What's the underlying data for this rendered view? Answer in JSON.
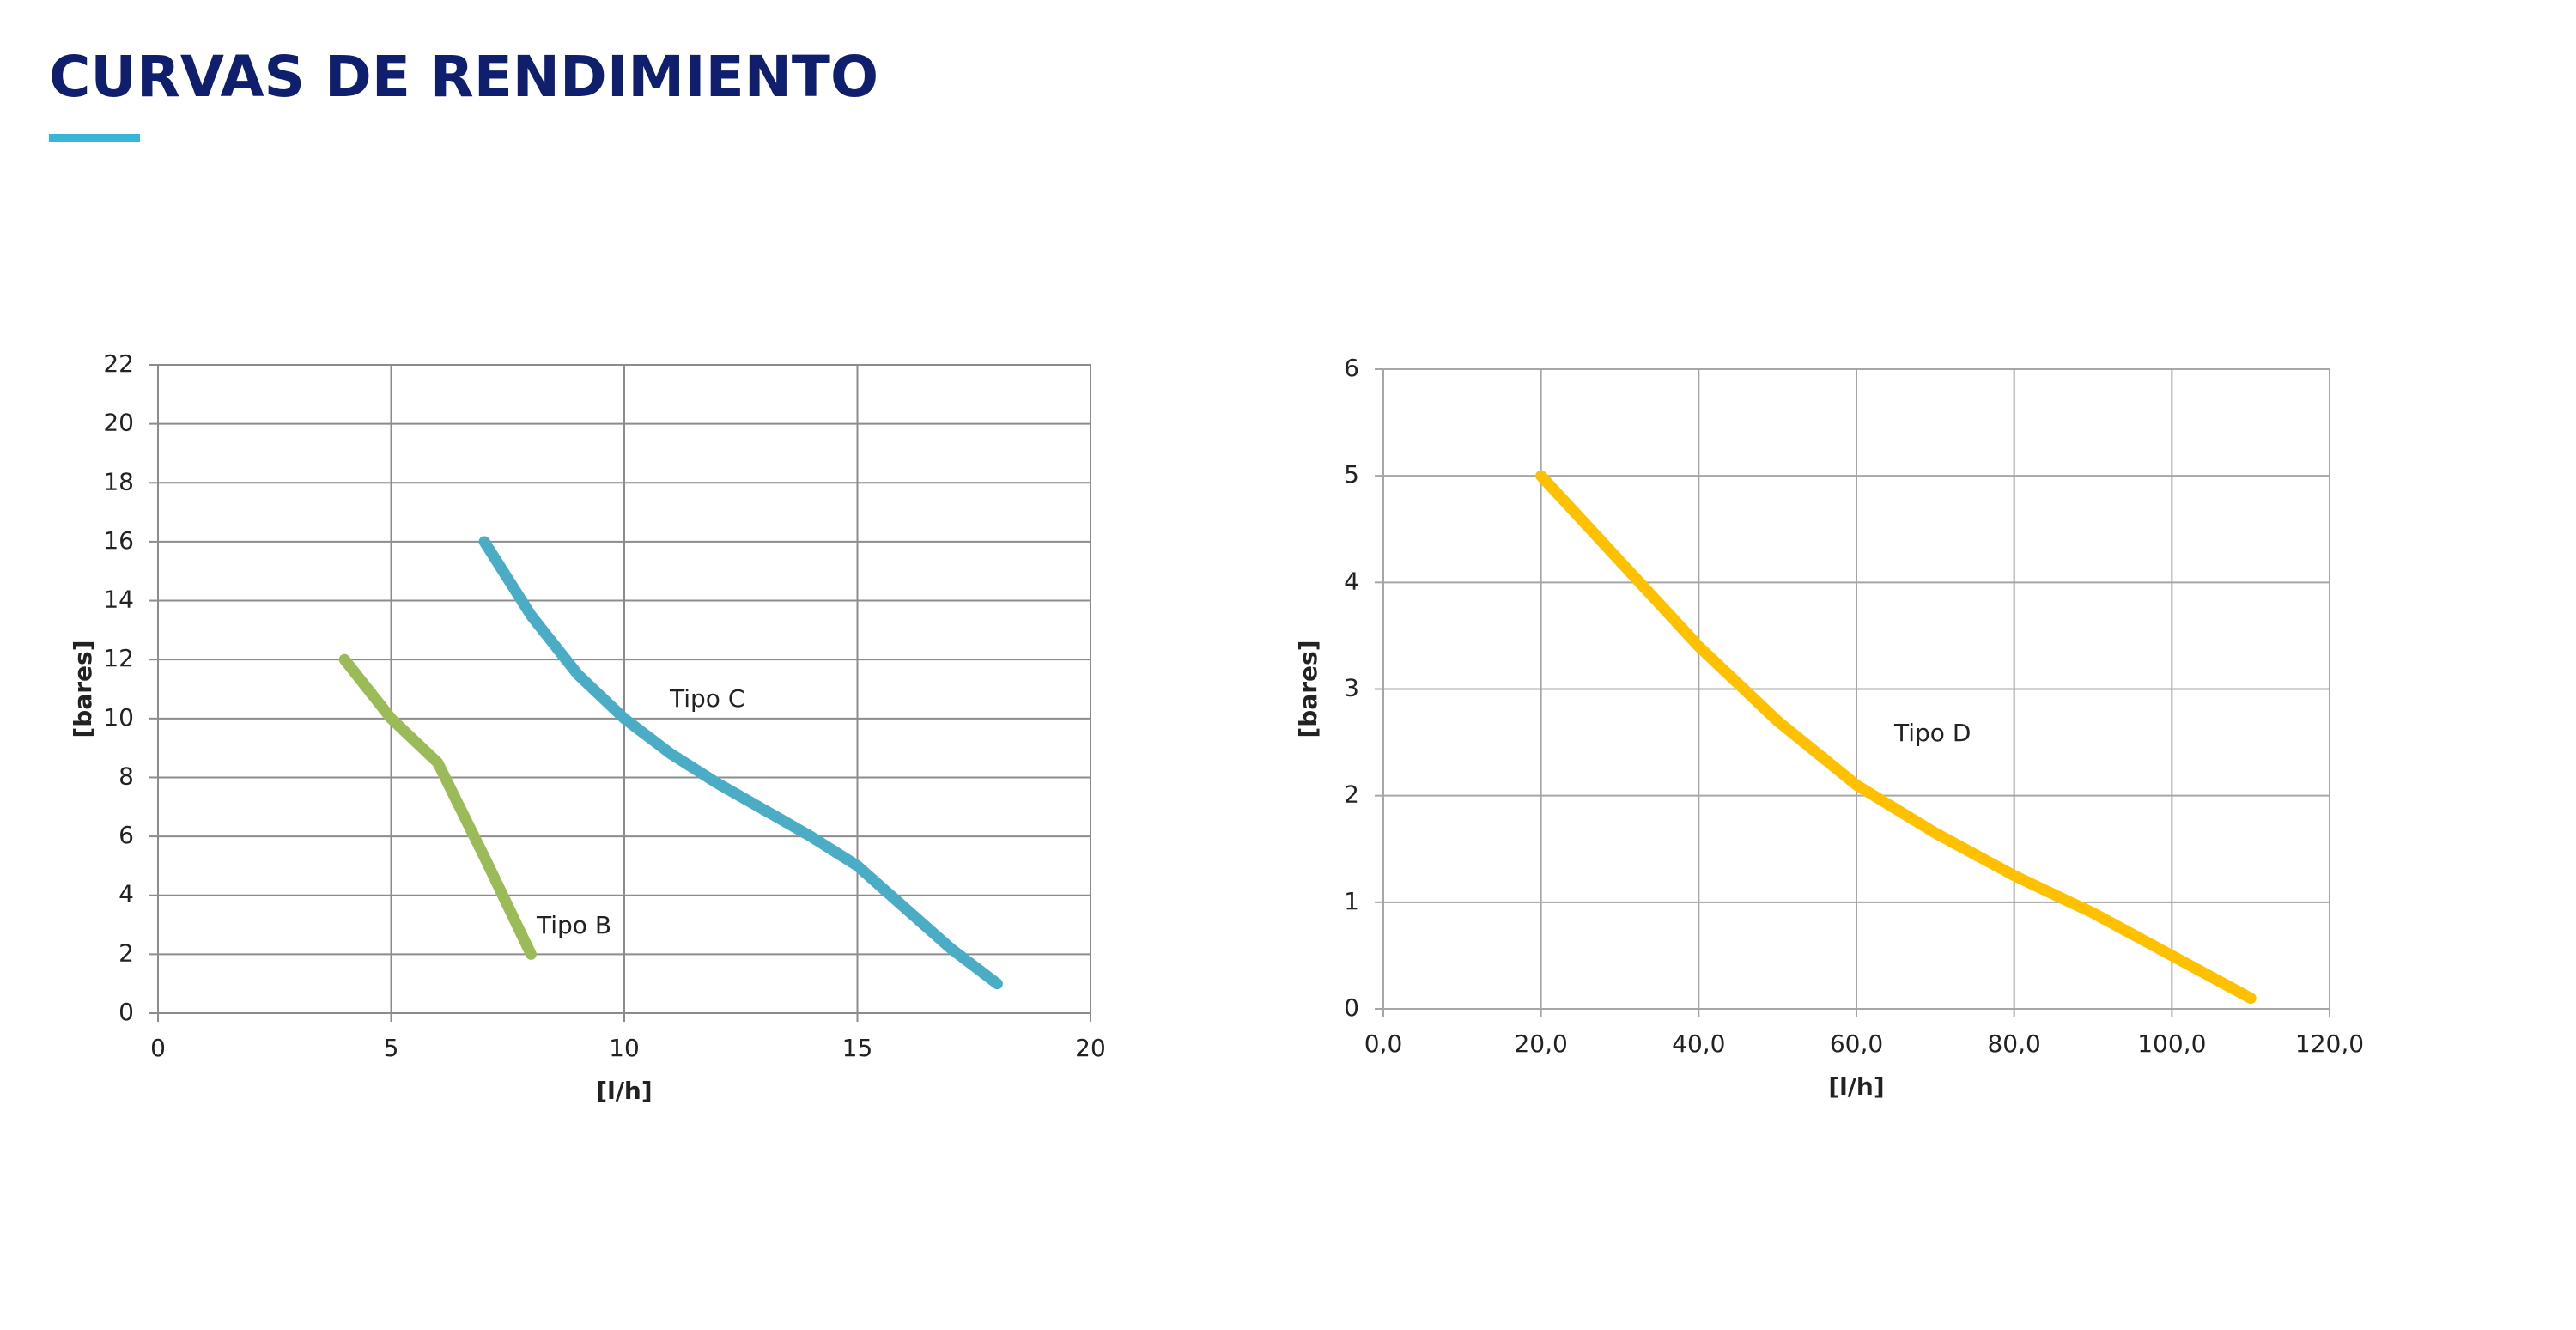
{
  "header": {
    "title": "CURVAS DE RENDIMIENTO"
  },
  "chart_data": [
    {
      "type": "line",
      "xlabel": "[l/h]",
      "ylabel": "[bares]",
      "xlim": [
        0,
        20
      ],
      "xticks": [
        0,
        5,
        10,
        15,
        20
      ],
      "ylim": [
        0,
        22
      ],
      "yticks": [
        0,
        2,
        4,
        6,
        8,
        10,
        12,
        14,
        16,
        18,
        20,
        22
      ],
      "grid": true,
      "series": [
        {
          "name": "Tipo B",
          "color": "#9bbb59",
          "x": [
            4,
            5,
            6,
            7,
            8
          ],
          "values": [
            12,
            10,
            8.5,
            5.3,
            2
          ]
        },
        {
          "name": "Tipo C",
          "color": "#4bacc6",
          "x": [
            7,
            8,
            9,
            10,
            11,
            12,
            13,
            14,
            15,
            16,
            17,
            18
          ],
          "values": [
            16,
            13.5,
            11.5,
            10,
            8.8,
            7.8,
            6.9,
            6,
            5,
            3.6,
            2.2,
            1
          ]
        }
      ]
    },
    {
      "type": "line",
      "xlabel": "[l/h]",
      "ylabel": "[bares]",
      "xlim": [
        0,
        120
      ],
      "xticks": [
        {
          "value": 0,
          "label": "0,0"
        },
        {
          "value": 20,
          "label": "20,0"
        },
        {
          "value": 40,
          "label": "40,0"
        },
        {
          "value": 60,
          "label": "60,0"
        },
        {
          "value": 80,
          "label": "80,0"
        },
        {
          "value": 100,
          "label": "100,0"
        },
        {
          "value": 120,
          "label": "120,0"
        }
      ],
      "ylim": [
        0,
        6
      ],
      "yticks": [
        0,
        1,
        2,
        3,
        4,
        5,
        6
      ],
      "grid": true,
      "series": [
        {
          "name": "Tipo D",
          "color": "#ffc000",
          "x": [
            20,
            30,
            40,
            50,
            60,
            70,
            80,
            90,
            100,
            110
          ],
          "values": [
            5,
            4.2,
            3.4,
            2.7,
            2.1,
            1.65,
            1.25,
            0.9,
            0.5,
            0.1
          ]
        }
      ]
    }
  ]
}
